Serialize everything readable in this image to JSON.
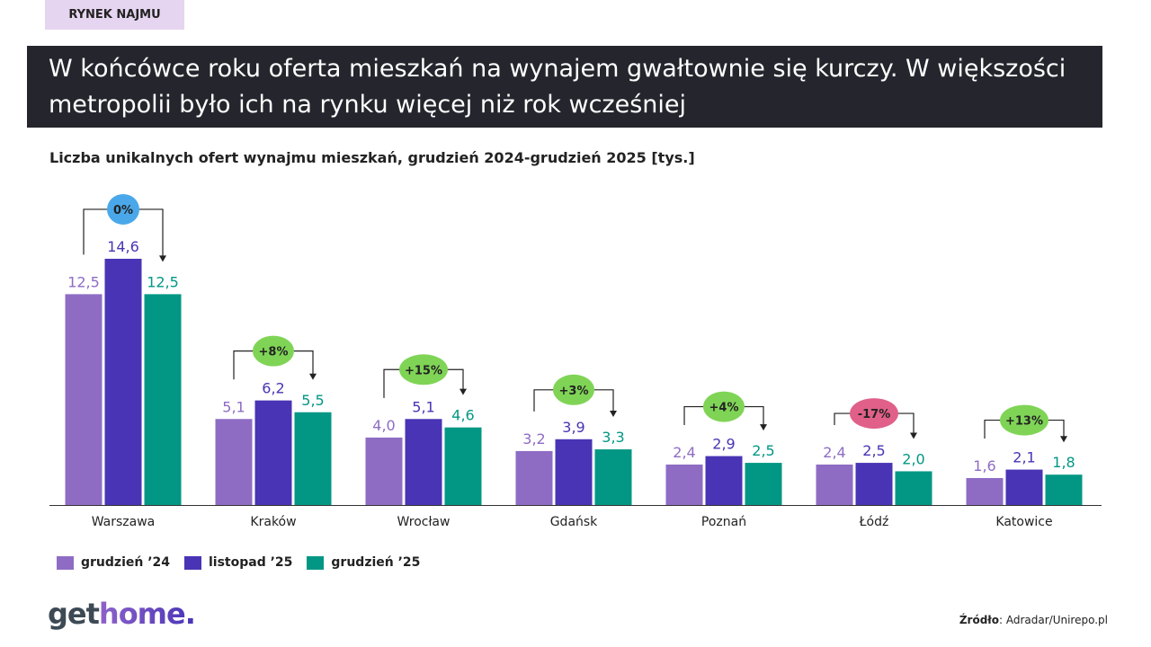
{
  "tag": "RYNEK NAJMU",
  "title": "W końcówce roku oferta mieszkań na wynajem gwałtownie się kurczy. W większości metropolii było ich na rynku więcej niż rok wcześniej",
  "logo": {
    "part1": "get",
    "part2": "home."
  },
  "source": {
    "label": "Źródło",
    "text": ": Adradar/Unirepo.pl"
  },
  "chart_data": {
    "type": "bar",
    "title": "Liczba unikalnych ofert wynajmu mieszkań, grudzień 2024-grudzień 2025  [tys.]",
    "categories": [
      "Warszawa",
      "Kraków",
      "Wrocław",
      "Gdańsk",
      "Poznań",
      "Łódź",
      "Katowice"
    ],
    "series": [
      {
        "name": "grudzień ’24",
        "color": "#8e6cc4",
        "values": [
          12.5,
          5.1,
          4.0,
          3.2,
          2.4,
          2.4,
          1.6
        ],
        "labels": [
          "12,5",
          "5,1",
          "4,0",
          "3,2",
          "2,4",
          "2,4",
          "1,6"
        ]
      },
      {
        "name": "listopad ’25",
        "color": "#4834b4",
        "values": [
          14.6,
          6.2,
          5.1,
          3.9,
          2.9,
          2.5,
          2.1
        ],
        "labels": [
          "14,6",
          "6,2",
          "5,1",
          "3,9",
          "2,9",
          "2,5",
          "2,1"
        ]
      },
      {
        "name": "grudzień ’25",
        "color": "#029784",
        "values": [
          12.5,
          5.5,
          4.6,
          3.3,
          2.5,
          2.0,
          1.8
        ],
        "labels": [
          "12,5",
          "5,5",
          "4,6",
          "3,3",
          "2,5",
          "2,0",
          "1,8"
        ]
      }
    ],
    "annotations": [
      {
        "text": "0%",
        "color": "#4aa8ea"
      },
      {
        "text": "+8%",
        "color": "#7fd456"
      },
      {
        "text": "+15%",
        "color": "#7fd456"
      },
      {
        "text": "+3%",
        "color": "#7fd456"
      },
      {
        "text": "+4%",
        "color": "#7fd456"
      },
      {
        "text": "-17%",
        "color": "#e0608a"
      },
      {
        "text": "+13%",
        "color": "#7fd456"
      }
    ],
    "ylim": [
      0,
      15
    ],
    "grid": false,
    "legend_position": "bottom-left"
  }
}
